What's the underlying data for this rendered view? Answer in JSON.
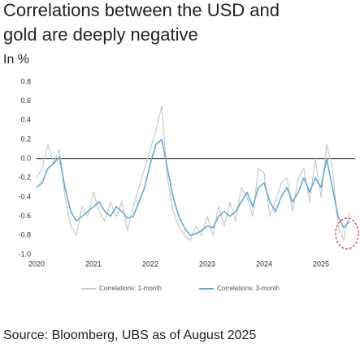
{
  "chart_data": {
    "type": "line",
    "title": [
      "Correlations between the USD and",
      "gold are deeply negative"
    ],
    "subtitle": "In %",
    "source": "Source: Bloomberg, UBS as of August 2025",
    "x": [
      2020.0,
      2020.1,
      2020.2,
      2020.3,
      2020.4,
      2020.5,
      2020.6,
      2020.7,
      2020.8,
      2020.9,
      2021.0,
      2021.1,
      2021.2,
      2021.3,
      2021.4,
      2021.5,
      2021.6,
      2021.7,
      2021.8,
      2021.9,
      2022.0,
      2022.1,
      2022.2,
      2022.3,
      2022.4,
      2022.5,
      2022.6,
      2022.7,
      2022.8,
      2022.9,
      2023.0,
      2023.1,
      2023.2,
      2023.3,
      2023.4,
      2023.5,
      2023.6,
      2023.7,
      2023.8,
      2023.9,
      2024.0,
      2024.1,
      2024.2,
      2024.3,
      2024.4,
      2024.5,
      2024.6,
      2024.7,
      2024.8,
      2024.9,
      2025.0,
      2025.1,
      2025.2,
      2025.3,
      2025.4,
      2025.5
    ],
    "series": [
      {
        "name": "Correlations: 1-month",
        "color": "#c9c9c9",
        "values": [
          -0.2,
          -0.1,
          0.15,
          -0.05,
          0.1,
          -0.4,
          -0.7,
          -0.8,
          -0.5,
          -0.6,
          -0.35,
          -0.55,
          -0.65,
          -0.45,
          -0.6,
          -0.45,
          -0.75,
          -0.5,
          -0.3,
          -0.1,
          0.1,
          0.3,
          0.55,
          -0.2,
          -0.55,
          -0.7,
          -0.8,
          -0.85,
          -0.7,
          -0.8,
          -0.6,
          -0.8,
          -0.5,
          -0.7,
          -0.45,
          -0.65,
          -0.3,
          -0.4,
          -0.6,
          -0.1,
          -0.15,
          -0.6,
          -0.45,
          -0.25,
          -0.2,
          -0.55,
          -0.2,
          -0.1,
          -0.45,
          0.0,
          -0.4,
          0.15,
          -0.1,
          -0.7,
          -0.85,
          -0.55
        ]
      },
      {
        "name": "Correlations: 3-month",
        "color": "#62aad6",
        "values": [
          -0.3,
          -0.25,
          -0.1,
          -0.05,
          0.02,
          -0.3,
          -0.55,
          -0.65,
          -0.6,
          -0.55,
          -0.5,
          -0.45,
          -0.55,
          -0.6,
          -0.5,
          -0.55,
          -0.62,
          -0.6,
          -0.45,
          -0.3,
          -0.05,
          0.15,
          0.2,
          -0.1,
          -0.4,
          -0.6,
          -0.72,
          -0.8,
          -0.78,
          -0.75,
          -0.7,
          -0.72,
          -0.6,
          -0.55,
          -0.6,
          -0.55,
          -0.45,
          -0.35,
          -0.5,
          -0.3,
          -0.25,
          -0.45,
          -0.55,
          -0.4,
          -0.3,
          -0.45,
          -0.35,
          -0.2,
          -0.35,
          -0.2,
          -0.3,
          0.0,
          -0.3,
          -0.6,
          -0.72,
          -0.65
        ]
      }
    ],
    "xlim": [
      2020,
      2025.6
    ],
    "xticks": [
      2020,
      2021,
      2022,
      2023,
      2024,
      2025
    ],
    "ylim": [
      -1.0,
      0.8
    ],
    "yticks": [
      0.8,
      0.6,
      0.4,
      0.2,
      {
        "value": 0,
        "label": "0.0"
      },
      -0.2,
      -0.4,
      -0.6,
      -0.8,
      {
        "value": -1.0,
        "label": "-1.0"
      }
    ]
  }
}
